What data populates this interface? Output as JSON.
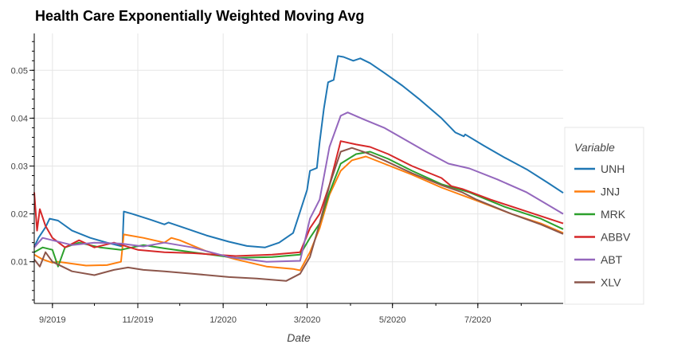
{
  "chart_data": {
    "type": "line",
    "title": "Health Care Exponentially Weighted Moving Avg",
    "xlabel": "Date",
    "ylabel": "",
    "x_tick_labels": [
      "9/2019",
      "11/2019",
      "1/2020",
      "3/2020",
      "5/2020",
      "7/2020"
    ],
    "x_ticks": [
      "2019-09-01",
      "2019-11-01",
      "2020-01-01",
      "2020-03-01",
      "2020-05-01",
      "2020-07-01"
    ],
    "xlim": [
      "2019-08-19",
      "2020-08-31"
    ],
    "y_ticks": [
      0.01,
      0.02,
      0.03,
      0.04,
      0.05
    ],
    "ylim": [
      0.0013,
      0.0577
    ],
    "grid": true,
    "legend_title": "Variable",
    "legend_position": "right",
    "series": [
      {
        "name": "UNH",
        "color": "#1f77b4",
        "points": [
          [
            "2019-08-19",
            0.0131
          ],
          [
            "2019-08-22",
            0.015
          ],
          [
            "2019-08-27",
            0.0172
          ],
          [
            "2019-08-30",
            0.019
          ],
          [
            "2019-09-05",
            0.0186
          ],
          [
            "2019-09-15",
            0.0165
          ],
          [
            "2019-09-28",
            0.015
          ],
          [
            "2019-10-10",
            0.014
          ],
          [
            "2019-10-21",
            0.0132
          ],
          [
            "2019-10-22",
            0.0205
          ],
          [
            "2019-10-28",
            0.02
          ],
          [
            "2019-11-10",
            0.0188
          ],
          [
            "2019-11-20",
            0.0178
          ],
          [
            "2019-11-23",
            0.0182
          ],
          [
            "2019-12-05",
            0.017
          ],
          [
            "2019-12-20",
            0.0155
          ],
          [
            "2020-01-05",
            0.0142
          ],
          [
            "2020-01-18",
            0.0133
          ],
          [
            "2020-01-31",
            0.013
          ],
          [
            "2020-02-10",
            0.014
          ],
          [
            "2020-02-20",
            0.016
          ],
          [
            "2020-02-25",
            0.0205
          ],
          [
            "2020-03-01",
            0.025
          ],
          [
            "2020-03-03",
            0.029
          ],
          [
            "2020-03-08",
            0.0296
          ],
          [
            "2020-03-10",
            0.035
          ],
          [
            "2020-03-13",
            0.042
          ],
          [
            "2020-03-16",
            0.0475
          ],
          [
            "2020-03-20",
            0.048
          ],
          [
            "2020-03-23",
            0.053
          ],
          [
            "2020-03-27",
            0.0528
          ],
          [
            "2020-04-03",
            0.052
          ],
          [
            "2020-04-08",
            0.0525
          ],
          [
            "2020-04-15",
            0.0515
          ],
          [
            "2020-04-25",
            0.0495
          ],
          [
            "2020-05-08",
            0.0468
          ],
          [
            "2020-05-20",
            0.044
          ],
          [
            "2020-06-05",
            0.04
          ],
          [
            "2020-06-15",
            0.037
          ],
          [
            "2020-06-21",
            0.0362
          ],
          [
            "2020-06-22",
            0.0366
          ],
          [
            "2020-07-05",
            0.0343
          ],
          [
            "2020-07-20",
            0.0318
          ],
          [
            "2020-08-05",
            0.0293
          ],
          [
            "2020-08-20",
            0.0265
          ],
          [
            "2020-08-31",
            0.0244
          ]
        ]
      },
      {
        "name": "JNJ",
        "color": "#ff7f0e",
        "points": [
          [
            "2019-08-19",
            0.0115
          ],
          [
            "2019-08-25",
            0.0105
          ],
          [
            "2019-09-01",
            0.0098
          ],
          [
            "2019-09-05",
            0.01
          ],
          [
            "2019-09-10",
            0.0098
          ],
          [
            "2019-09-25",
            0.0092
          ],
          [
            "2019-10-10",
            0.0093
          ],
          [
            "2019-10-20",
            0.01
          ],
          [
            "2019-10-22",
            0.0157
          ],
          [
            "2019-11-05",
            0.015
          ],
          [
            "2019-11-20",
            0.014
          ],
          [
            "2019-11-25",
            0.015
          ],
          [
            "2019-12-01",
            0.0145
          ],
          [
            "2019-12-20",
            0.0122
          ],
          [
            "2020-01-10",
            0.0105
          ],
          [
            "2020-02-01",
            0.009
          ],
          [
            "2020-02-20",
            0.0085
          ],
          [
            "2020-02-25",
            0.0082
          ],
          [
            "2020-03-03",
            0.012
          ],
          [
            "2020-03-10",
            0.017
          ],
          [
            "2020-03-17",
            0.024
          ],
          [
            "2020-03-25",
            0.029
          ],
          [
            "2020-04-02",
            0.0312
          ],
          [
            "2020-04-12",
            0.032
          ],
          [
            "2020-04-25",
            0.0305
          ],
          [
            "2020-05-15",
            0.0282
          ],
          [
            "2020-06-05",
            0.0255
          ],
          [
            "2020-06-30",
            0.0228
          ],
          [
            "2020-07-25",
            0.02
          ],
          [
            "2020-08-15",
            0.018
          ],
          [
            "2020-08-31",
            0.016
          ]
        ]
      },
      {
        "name": "MRK",
        "color": "#2ca02c",
        "points": [
          [
            "2019-08-19",
            0.012
          ],
          [
            "2019-08-25",
            0.013
          ],
          [
            "2019-09-01",
            0.0125
          ],
          [
            "2019-09-05",
            0.009
          ],
          [
            "2019-09-10",
            0.013
          ],
          [
            "2019-09-20",
            0.014
          ],
          [
            "2019-10-05",
            0.013
          ],
          [
            "2019-10-20",
            0.0125
          ],
          [
            "2019-11-05",
            0.0135
          ],
          [
            "2019-11-20",
            0.0128
          ],
          [
            "2019-12-10",
            0.012
          ],
          [
            "2020-01-10",
            0.0108
          ],
          [
            "2020-02-05",
            0.011
          ],
          [
            "2020-02-25",
            0.0115
          ],
          [
            "2020-03-03",
            0.015
          ],
          [
            "2020-03-10",
            0.018
          ],
          [
            "2020-03-17",
            0.0245
          ],
          [
            "2020-03-25",
            0.0305
          ],
          [
            "2020-04-05",
            0.0325
          ],
          [
            "2020-04-15",
            0.033
          ],
          [
            "2020-04-28",
            0.0315
          ],
          [
            "2020-05-15",
            0.029
          ],
          [
            "2020-06-05",
            0.0262
          ],
          [
            "2020-06-25",
            0.0245
          ],
          [
            "2020-07-20",
            0.0215
          ],
          [
            "2020-08-15",
            0.019
          ],
          [
            "2020-08-31",
            0.0168
          ]
        ]
      },
      {
        "name": "ABBV",
        "color": "#d62728",
        "points": [
          [
            "2019-08-19",
            0.0245
          ],
          [
            "2019-08-21",
            0.0165
          ],
          [
            "2019-08-23",
            0.021
          ],
          [
            "2019-08-27",
            0.0175
          ],
          [
            "2019-09-01",
            0.015
          ],
          [
            "2019-09-10",
            0.013
          ],
          [
            "2019-09-20",
            0.0145
          ],
          [
            "2019-10-01",
            0.013
          ],
          [
            "2019-10-15",
            0.014
          ],
          [
            "2019-11-01",
            0.0125
          ],
          [
            "2019-11-20",
            0.012
          ],
          [
            "2019-12-10",
            0.0118
          ],
          [
            "2020-01-10",
            0.0112
          ],
          [
            "2020-02-05",
            0.0115
          ],
          [
            "2020-02-25",
            0.012
          ],
          [
            "2020-03-03",
            0.017
          ],
          [
            "2020-03-10",
            0.02
          ],
          [
            "2020-03-17",
            0.026
          ],
          [
            "2020-03-25",
            0.0352
          ],
          [
            "2020-04-05",
            0.0345
          ],
          [
            "2020-04-15",
            0.034
          ],
          [
            "2020-04-28",
            0.0325
          ],
          [
            "2020-05-15",
            0.03
          ],
          [
            "2020-06-05",
            0.0275
          ],
          [
            "2020-06-12",
            0.0258
          ],
          [
            "2020-06-20",
            0.0252
          ],
          [
            "2020-07-10",
            0.023
          ],
          [
            "2020-08-05",
            0.0205
          ],
          [
            "2020-08-31",
            0.018
          ]
        ]
      },
      {
        "name": "ABT",
        "color": "#9467bd",
        "points": [
          [
            "2019-08-19",
            0.013
          ],
          [
            "2019-08-25",
            0.015
          ],
          [
            "2019-09-01",
            0.0145
          ],
          [
            "2019-09-15",
            0.0135
          ],
          [
            "2019-10-01",
            0.014
          ],
          [
            "2019-10-20",
            0.0138
          ],
          [
            "2019-11-05",
            0.0132
          ],
          [
            "2019-11-20",
            0.014
          ],
          [
            "2019-12-10",
            0.013
          ],
          [
            "2020-01-05",
            0.011
          ],
          [
            "2020-02-01",
            0.01
          ],
          [
            "2020-02-25",
            0.0102
          ],
          [
            "2020-03-03",
            0.019
          ],
          [
            "2020-03-10",
            0.023
          ],
          [
            "2020-03-17",
            0.034
          ],
          [
            "2020-03-25",
            0.0405
          ],
          [
            "2020-03-30",
            0.0412
          ],
          [
            "2020-04-10",
            0.0398
          ],
          [
            "2020-04-25",
            0.038
          ],
          [
            "2020-05-10",
            0.0355
          ],
          [
            "2020-05-25",
            0.033
          ],
          [
            "2020-06-10",
            0.0305
          ],
          [
            "2020-06-25",
            0.0295
          ],
          [
            "2020-07-15",
            0.0272
          ],
          [
            "2020-08-05",
            0.0245
          ],
          [
            "2020-08-31",
            0.02
          ]
        ]
      },
      {
        "name": "XLV",
        "color": "#8c564b",
        "points": [
          [
            "2019-08-19",
            0.0105
          ],
          [
            "2019-08-23",
            0.009
          ],
          [
            "2019-08-27",
            0.012
          ],
          [
            "2019-09-01",
            0.01
          ],
          [
            "2019-09-15",
            0.008
          ],
          [
            "2019-10-01",
            0.0072
          ],
          [
            "2019-10-15",
            0.0083
          ],
          [
            "2019-10-25",
            0.0088
          ],
          [
            "2019-11-05",
            0.0083
          ],
          [
            "2019-11-20",
            0.008
          ],
          [
            "2019-12-10",
            0.0075
          ],
          [
            "2020-01-05",
            0.0068
          ],
          [
            "2020-01-25",
            0.0065
          ],
          [
            "2020-02-15",
            0.006
          ],
          [
            "2020-02-25",
            0.0075
          ],
          [
            "2020-03-03",
            0.011
          ],
          [
            "2020-03-10",
            0.018
          ],
          [
            "2020-03-17",
            0.026
          ],
          [
            "2020-03-25",
            0.033
          ],
          [
            "2020-04-02",
            0.0338
          ],
          [
            "2020-04-12",
            0.0328
          ],
          [
            "2020-04-25",
            0.0312
          ],
          [
            "2020-05-15",
            0.0285
          ],
          [
            "2020-06-05",
            0.026
          ],
          [
            "2020-06-20",
            0.0245
          ],
          [
            "2020-06-30",
            0.023
          ],
          [
            "2020-07-25",
            0.02
          ],
          [
            "2020-08-15",
            0.0178
          ],
          [
            "2020-08-31",
            0.0158
          ]
        ]
      }
    ]
  }
}
